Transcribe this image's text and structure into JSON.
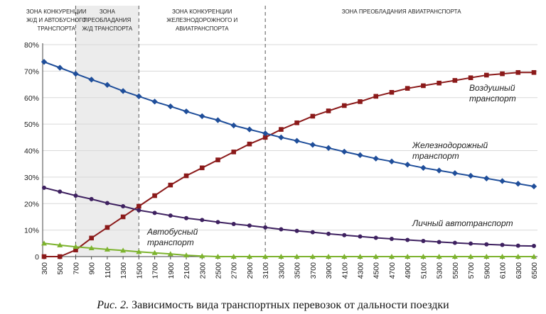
{
  "caption": {
    "label": "Рис. 2.",
    "text": " Зависимость вида транспортных перевозок от дальности поездки"
  },
  "chart_data": {
    "type": "line",
    "x": [
      300,
      500,
      700,
      900,
      1100,
      1300,
      1500,
      1700,
      1900,
      2100,
      2300,
      2500,
      2700,
      2900,
      3100,
      3300,
      3500,
      3700,
      3900,
      4100,
      4300,
      4500,
      4700,
      4900,
      5100,
      5300,
      5500,
      5700,
      5900,
      6100,
      6300,
      6500
    ],
    "x_tick_labels": [
      "300",
      "500",
      "700",
      "900",
      "1100",
      "1300",
      "1500",
      "1700",
      "1900",
      "2100",
      "2300",
      "2500",
      "2700",
      "2900",
      "3100",
      "3300",
      "3500",
      "3700",
      "3900",
      "4100",
      "4300",
      "4500",
      "4700",
      "4900",
      "5100",
      "5300",
      "5500",
      "5700",
      "5900",
      "6100",
      "6300",
      "6500"
    ],
    "y_tick_labels": [
      "0",
      "10%",
      "20%",
      "30%",
      "40%",
      "50%",
      "60%",
      "70%",
      "80%"
    ],
    "ylim": [
      0,
      80
    ],
    "grid": "horizontal",
    "series": [
      {
        "name": "Воздушный транспорт",
        "color": "#8B1A1A",
        "marker": "square",
        "values": [
          0,
          0,
          2.5,
          7,
          11,
          15,
          19,
          23,
          27,
          30.5,
          33.5,
          36.5,
          39.5,
          42.5,
          45,
          48,
          50.5,
          53,
          55,
          57,
          58.5,
          60.5,
          62,
          63.5,
          64.5,
          65.5,
          66.5,
          67.5,
          68.5,
          69,
          69.5,
          69.5
        ]
      },
      {
        "name": "Железнодорожный транспорт",
        "color": "#1F4E9A",
        "marker": "diamond",
        "values": [
          73.5,
          71.3,
          69,
          66.8,
          64.8,
          62.5,
          60.5,
          58.5,
          56.7,
          54.8,
          53,
          51.5,
          49.5,
          48,
          46.5,
          45,
          43.7,
          42.2,
          41,
          39.6,
          38.3,
          37,
          35.9,
          34.7,
          33.5,
          32.5,
          31.5,
          30.5,
          29.5,
          28.5,
          27.5,
          26.5
        ]
      },
      {
        "name": "Личный автотранспорт",
        "color": "#3E2160",
        "marker": "circle",
        "values": [
          26,
          24.5,
          23,
          21.7,
          20.2,
          19,
          17.5,
          16.5,
          15.5,
          14.5,
          13.8,
          13,
          12.3,
          11.7,
          11,
          10.3,
          9.7,
          9.2,
          8.6,
          8.1,
          7.6,
          7.1,
          6.7,
          6.3,
          5.9,
          5.5,
          5.2,
          4.9,
          4.6,
          4.4,
          4.1,
          4
        ]
      },
      {
        "name": "Автобусный транспорт",
        "color": "#7DB32E",
        "marker": "triangle",
        "values": [
          5,
          4.3,
          3.7,
          3.2,
          2.7,
          2.3,
          1.8,
          1.4,
          1,
          0.5,
          0.2,
          0,
          0,
          0,
          0,
          0,
          0,
          0,
          0,
          0,
          0,
          0,
          0,
          0,
          0,
          0,
          0,
          0,
          0,
          0,
          0,
          0
        ]
      }
    ],
    "annotations": [
      {
        "series": "Воздушный транспорт",
        "lines": [
          "Воздушный",
          "транспорт"
        ]
      },
      {
        "series": "Железнодорожный транспорт",
        "lines": [
          "Железнодорожный",
          "транспорт"
        ]
      },
      {
        "series": "Личный автотранспорт",
        "lines": [
          "Личный автотранспорт"
        ]
      },
      {
        "series": "Автобусный транспорт",
        "lines": [
          "Автобусный",
          "транспорт"
        ]
      }
    ],
    "zone_dividers": [
      700,
      1500,
      3100
    ],
    "shaded_zone": [
      700,
      1500
    ],
    "shaded_color": "#ECECEC",
    "zones": [
      {
        "lines": [
          "ЗОНА КОНКУРЕНЦИИ",
          "Ж/Д И АВТОБУСНОГО",
          "ТРАНСПОРТА"
        ]
      },
      {
        "lines": [
          "ЗОНА",
          "ПРЕОБЛАДАНИЯ",
          "Ж/Д ТРАНСПОРТА"
        ]
      },
      {
        "lines": [
          "ЗОНА КОНКУРЕНЦИИ",
          "ЖЕЛЕЗНОДОРОЖНОГО И",
          "АВИАТРАНСПОРТА"
        ]
      },
      {
        "lines": [
          "ЗОНА ПРЕОБЛАДАНИЯ АВИАТРАНСПОРТА"
        ]
      }
    ]
  }
}
